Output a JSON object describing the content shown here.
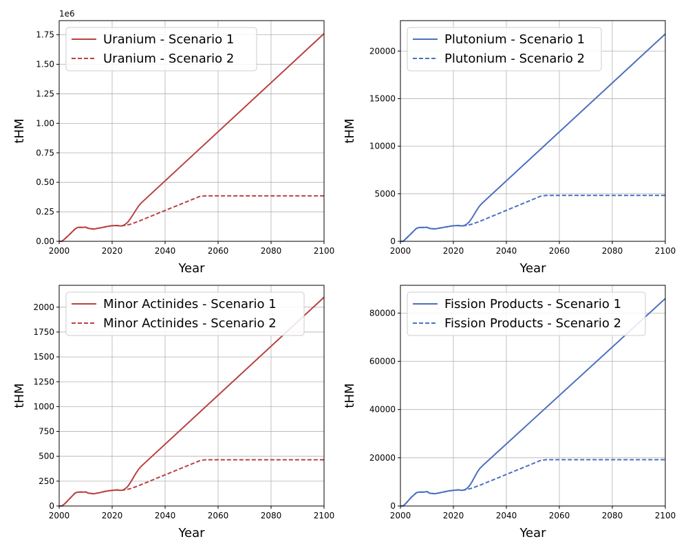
{
  "chart_data": [
    {
      "type": "line",
      "xlabel": "Year",
      "ylabel": "tHM",
      "xlim": [
        2000,
        2100
      ],
      "ylim": [
        0,
        1870000
      ],
      "xticks": [
        2000,
        2020,
        2040,
        2060,
        2080,
        2100
      ],
      "xtick_labels": [
        "2000",
        "2020",
        "2040",
        "2060",
        "2080",
        "2100"
      ],
      "yticks": [
        0,
        250000,
        500000,
        750000,
        1000000,
        1250000,
        1500000,
        1750000
      ],
      "ytick_labels": [
        "0.00",
        "0.25",
        "0.50",
        "0.75",
        "1.00",
        "1.25",
        "1.50",
        "1.75"
      ],
      "offset_text": "1e6",
      "grid": true,
      "legend": "upper-left",
      "color": "#b94040",
      "series": [
        {
          "name": "Uranium - Scenario 1",
          "style": "solid",
          "x": [
            2000,
            2001,
            2002,
            2004,
            2006,
            2007,
            2009,
            2010,
            2011,
            2013,
            2014,
            2015,
            2017,
            2018,
            2020,
            2022,
            2023,
            2024,
            2025,
            2026,
            2027,
            2028,
            2029,
            2030,
            2031,
            2100
          ],
          "y": [
            0,
            0,
            18000,
            60000,
            105000,
            118000,
            118000,
            120000,
            110000,
            103000,
            108000,
            112000,
            120000,
            125000,
            132000,
            134000,
            130000,
            132000,
            145000,
            165000,
            195000,
            230000,
            265000,
            300000,
            325000,
            1760000
          ]
        },
        {
          "name": "Uranium - Scenario 2",
          "style": "dashed",
          "x": [
            2000,
            2001,
            2002,
            2004,
            2006,
            2007,
            2009,
            2010,
            2011,
            2013,
            2014,
            2015,
            2017,
            2018,
            2020,
            2022,
            2023,
            2024,
            2025,
            2027,
            2030,
            2053,
            2055,
            2100
          ],
          "y": [
            0,
            0,
            18000,
            60000,
            105000,
            118000,
            118000,
            120000,
            110000,
            103000,
            108000,
            112000,
            120000,
            125000,
            132000,
            134000,
            130000,
            132000,
            135000,
            145000,
            170000,
            380000,
            385000,
            385000
          ]
        }
      ]
    },
    {
      "type": "line",
      "xlabel": "Year",
      "ylabel": "tHM",
      "xlim": [
        2000,
        2100
      ],
      "ylim": [
        0,
        23200
      ],
      "xticks": [
        2000,
        2020,
        2040,
        2060,
        2080,
        2100
      ],
      "xtick_labels": [
        "2000",
        "2020",
        "2040",
        "2060",
        "2080",
        "2100"
      ],
      "yticks": [
        0,
        5000,
        10000,
        15000,
        20000
      ],
      "ytick_labels": [
        "0",
        "5000",
        "10000",
        "15000",
        "20000"
      ],
      "grid": true,
      "legend": "upper-left",
      "color": "#4a6fbf",
      "series": [
        {
          "name": "Plutonium - Scenario 1",
          "style": "solid",
          "x": [
            2000,
            2001,
            2002,
            2004,
            2006,
            2007,
            2009,
            2010,
            2011,
            2013,
            2014,
            2015,
            2017,
            2018,
            2020,
            2022,
            2023,
            2024,
            2025,
            2026,
            2027,
            2028,
            2029,
            2030,
            2031,
            2100
          ],
          "y": [
            0,
            0,
            250,
            800,
            1350,
            1450,
            1450,
            1480,
            1350,
            1300,
            1350,
            1400,
            1500,
            1550,
            1630,
            1660,
            1620,
            1650,
            1800,
            2050,
            2450,
            2900,
            3350,
            3750,
            4050,
            21800
          ]
        },
        {
          "name": "Plutonium - Scenario 2",
          "style": "dashed",
          "x": [
            2000,
            2001,
            2002,
            2004,
            2006,
            2007,
            2009,
            2010,
            2011,
            2013,
            2014,
            2015,
            2017,
            2018,
            2020,
            2022,
            2023,
            2024,
            2025,
            2027,
            2030,
            2053,
            2055,
            2100
          ],
          "y": [
            0,
            0,
            250,
            800,
            1350,
            1450,
            1450,
            1480,
            1350,
            1300,
            1350,
            1400,
            1500,
            1550,
            1630,
            1660,
            1620,
            1650,
            1680,
            1800,
            2100,
            4750,
            4820,
            4820
          ]
        }
      ]
    },
    {
      "type": "line",
      "xlabel": "Year",
      "ylabel": "tHM",
      "xlim": [
        2000,
        2100
      ],
      "ylim": [
        0,
        2220
      ],
      "xticks": [
        2000,
        2020,
        2040,
        2060,
        2080,
        2100
      ],
      "xtick_labels": [
        "2000",
        "2020",
        "2040",
        "2060",
        "2080",
        "2100"
      ],
      "yticks": [
        0,
        250,
        500,
        750,
        1000,
        1250,
        1500,
        1750,
        2000
      ],
      "ytick_labels": [
        "0",
        "250",
        "500",
        "750",
        "1000",
        "1250",
        "1500",
        "1750",
        "2000"
      ],
      "grid": true,
      "legend": "upper-left",
      "color": "#b94040",
      "series": [
        {
          "name": "Minor Actinides - Scenario 1",
          "style": "solid",
          "x": [
            2000,
            2001,
            2002,
            2004,
            2006,
            2007,
            2009,
            2010,
            2011,
            2013,
            2014,
            2015,
            2017,
            2018,
            2020,
            2022,
            2023,
            2024,
            2025,
            2026,
            2027,
            2028,
            2029,
            2030,
            2031,
            2100
          ],
          "y": [
            0,
            0,
            20,
            75,
            130,
            140,
            140,
            142,
            130,
            123,
            128,
            133,
            145,
            150,
            158,
            162,
            157,
            160,
            175,
            200,
            240,
            285,
            330,
            370,
            400,
            2100
          ]
        },
        {
          "name": "Minor Actinides - Scenario 2",
          "style": "dashed",
          "x": [
            2000,
            2001,
            2002,
            2004,
            2006,
            2007,
            2009,
            2010,
            2011,
            2013,
            2014,
            2015,
            2017,
            2018,
            2020,
            2022,
            2023,
            2024,
            2025,
            2027,
            2030,
            2053,
            2055,
            2100
          ],
          "y": [
            0,
            0,
            20,
            75,
            130,
            140,
            140,
            142,
            130,
            123,
            128,
            133,
            145,
            150,
            158,
            162,
            157,
            160,
            163,
            175,
            205,
            455,
            465,
            465
          ]
        }
      ]
    },
    {
      "type": "line",
      "xlabel": "Year",
      "ylabel": "tHM",
      "xlim": [
        2000,
        2100
      ],
      "ylim": [
        0,
        91500
      ],
      "xticks": [
        2000,
        2020,
        2040,
        2060,
        2080,
        2100
      ],
      "xtick_labels": [
        "2000",
        "2020",
        "2040",
        "2060",
        "2080",
        "2100"
      ],
      "yticks": [
        0,
        20000,
        40000,
        60000,
        80000
      ],
      "ytick_labels": [
        "0",
        "20000",
        "40000",
        "60000",
        "80000"
      ],
      "grid": true,
      "legend": "upper-left",
      "color": "#4a6fbf",
      "series": [
        {
          "name": "Fission Products - Scenario 1",
          "style": "solid",
          "x": [
            2000,
            2001,
            2002,
            2004,
            2006,
            2007,
            2009,
            2010,
            2011,
            2013,
            2014,
            2015,
            2017,
            2018,
            2020,
            2022,
            2023,
            2024,
            2025,
            2026,
            2027,
            2028,
            2029,
            2030,
            2031,
            2100
          ],
          "y": [
            0,
            0,
            1000,
            3500,
            5500,
            5800,
            5800,
            6000,
            5300,
            5100,
            5300,
            5500,
            6000,
            6200,
            6500,
            6700,
            6500,
            6600,
            7200,
            8300,
            10000,
            12000,
            14000,
            15600,
            16700,
            86000
          ]
        },
        {
          "name": "Fission Products - Scenario 2",
          "style": "dashed",
          "x": [
            2000,
            2001,
            2002,
            2004,
            2006,
            2007,
            2009,
            2010,
            2011,
            2013,
            2014,
            2015,
            2017,
            2018,
            2020,
            2022,
            2023,
            2024,
            2025,
            2027,
            2030,
            2053,
            2055,
            2100
          ],
          "y": [
            0,
            0,
            1000,
            3500,
            5500,
            5800,
            5800,
            6000,
            5300,
            5100,
            5300,
            5500,
            6000,
            6200,
            6500,
            6700,
            6500,
            6600,
            6800,
            7400,
            8600,
            18900,
            19200,
            19200
          ]
        }
      ]
    }
  ]
}
